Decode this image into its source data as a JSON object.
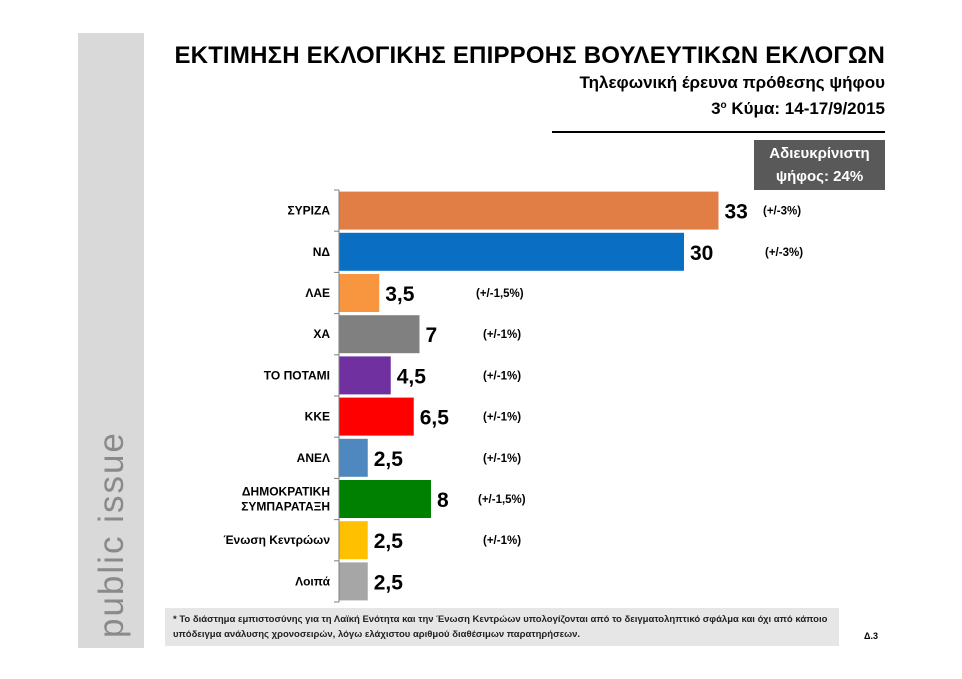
{
  "header": {
    "title": "ΕΚΤΙΜΗΣΗ ΕΚΛΟΓΙΚΗΣ ΕΠΙΡΡΟΗΣ ΒΟΥΛΕΥΤΙΚΩΝ ΕΚΛΟΓΩΝ",
    "subtitle": "Τηλεφωνική έρευνα πρόθεσης ψήφου",
    "wave_number": "3",
    "wave_sup": "ο",
    "wave_rest": " Κύμα: 14-17/9/2015"
  },
  "undecided": {
    "line1": "Αδιευκρίνιστη",
    "line2": "ψήφος: 24%"
  },
  "logo_text": "public issue",
  "footnote": "* Το διάστημα εμπιστοσύνης για τη Λαϊκή Ενότητα και την Ένωση Κεντρώων υπολογίζονται από το δειγματοληπτικό σφάλμα και όχι από κάποιο υπόδειγμα ανάλυσης χρονοσειρών, λόγω ελάχιστου αριθμού διαθέσιμων παρατηρήσεων.",
  "page_number": "Δ.3",
  "chart_data": {
    "type": "bar",
    "orientation": "horizontal",
    "categories": [
      "ΣΥΡΙΖΑ",
      "ΝΔ",
      "ΛΑΕ",
      "ΧΑ",
      "ΤΟ ΠΟΤΑΜΙ",
      "ΚΚΕ",
      "ΑΝΕΛ",
      "ΔΗΜΟΚΡΑΤΙΚΗ ΣΥΜΠΑΡΑΤΑΞΗ",
      "Ένωση Κεντρώων",
      "Λοιπά"
    ],
    "category_lines": [
      [
        "ΣΥΡΙΖΑ"
      ],
      [
        "ΝΔ"
      ],
      [
        "ΛΑΕ"
      ],
      [
        "ΧΑ"
      ],
      [
        "ΤΟ ΠΟΤΑΜΙ"
      ],
      [
        "ΚΚΕ"
      ],
      [
        "ΑΝΕΛ"
      ],
      [
        "ΔΗΜΟΚΡΑΤΙΚΗ",
        "ΣΥΜΠΑΡΑΤΑΞΗ"
      ],
      [
        "Ένωση Κεντρώων"
      ],
      [
        "Λοιπά"
      ]
    ],
    "values": [
      33,
      30,
      3.5,
      7,
      4.5,
      6.5,
      2.5,
      8,
      2.5,
      2.5
    ],
    "value_labels": [
      "33",
      "30",
      "3,5",
      "7",
      "4,5",
      "6,5",
      "2,5",
      "8",
      "2,5",
      "2,5"
    ],
    "margins": [
      "(+/-3%)",
      "(+/-3%)",
      "(+/-1,5%)",
      "(+/-1%)",
      "(+/-1%)",
      "(+/-1%)",
      "(+/-1%)",
      "(+/-1,5%)",
      "(+/-1%)",
      ""
    ],
    "colors": [
      "#e07e45",
      "#0a6fc2",
      "#f7963f",
      "#808080",
      "#7030a0",
      "#ff0000",
      "#4f87bf",
      "#008000",
      "#ffc000",
      "#a6a6a6"
    ],
    "xlim": [
      0,
      34
    ]
  }
}
